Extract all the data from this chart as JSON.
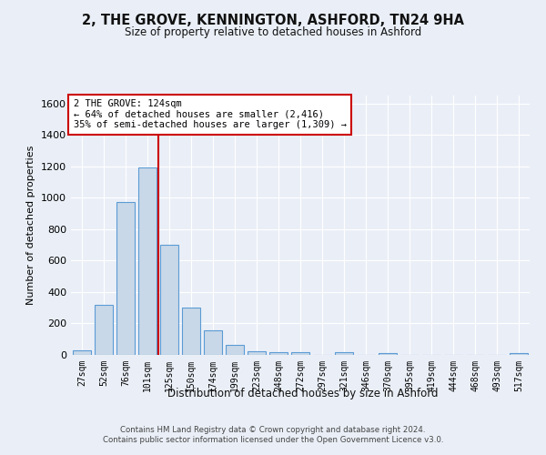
{
  "title": "2, THE GROVE, KENNINGTON, ASHFORD, TN24 9HA",
  "subtitle": "Size of property relative to detached houses in Ashford",
  "xlabel": "Distribution of detached houses by size in Ashford",
  "ylabel": "Number of detached properties",
  "bar_color": "#c8d8e8",
  "bar_edge_color": "#5b9bd5",
  "categories": [
    "27sqm",
    "52sqm",
    "76sqm",
    "101sqm",
    "125sqm",
    "150sqm",
    "174sqm",
    "199sqm",
    "223sqm",
    "248sqm",
    "272sqm",
    "297sqm",
    "321sqm",
    "346sqm",
    "370sqm",
    "395sqm",
    "419sqm",
    "444sqm",
    "468sqm",
    "493sqm",
    "517sqm"
  ],
  "values": [
    30,
    320,
    970,
    1190,
    700,
    300,
    155,
    65,
    25,
    20,
    20,
    0,
    15,
    0,
    10,
    0,
    0,
    0,
    0,
    0,
    10
  ],
  "ylim": [
    0,
    1650
  ],
  "yticks": [
    0,
    200,
    400,
    600,
    800,
    1000,
    1200,
    1400,
    1600
  ],
  "property_label": "2 THE GROVE: 124sqm",
  "annotation_line1": "← 64% of detached houses are smaller (2,416)",
  "annotation_line2": "35% of semi-detached houses are larger (1,309) →",
  "footer_line1": "Contains HM Land Registry data © Crown copyright and database right 2024.",
  "footer_line2": "Contains public sector information licensed under the Open Government Licence v3.0.",
  "background_color": "#eaeff7",
  "plot_bg_color": "#eaeff7",
  "grid_color": "#ffffff",
  "vline_color": "#cc0000",
  "annotation_box_color": "#ffffff",
  "annotation_box_edge": "#cc0000",
  "vline_pos": 3.5
}
